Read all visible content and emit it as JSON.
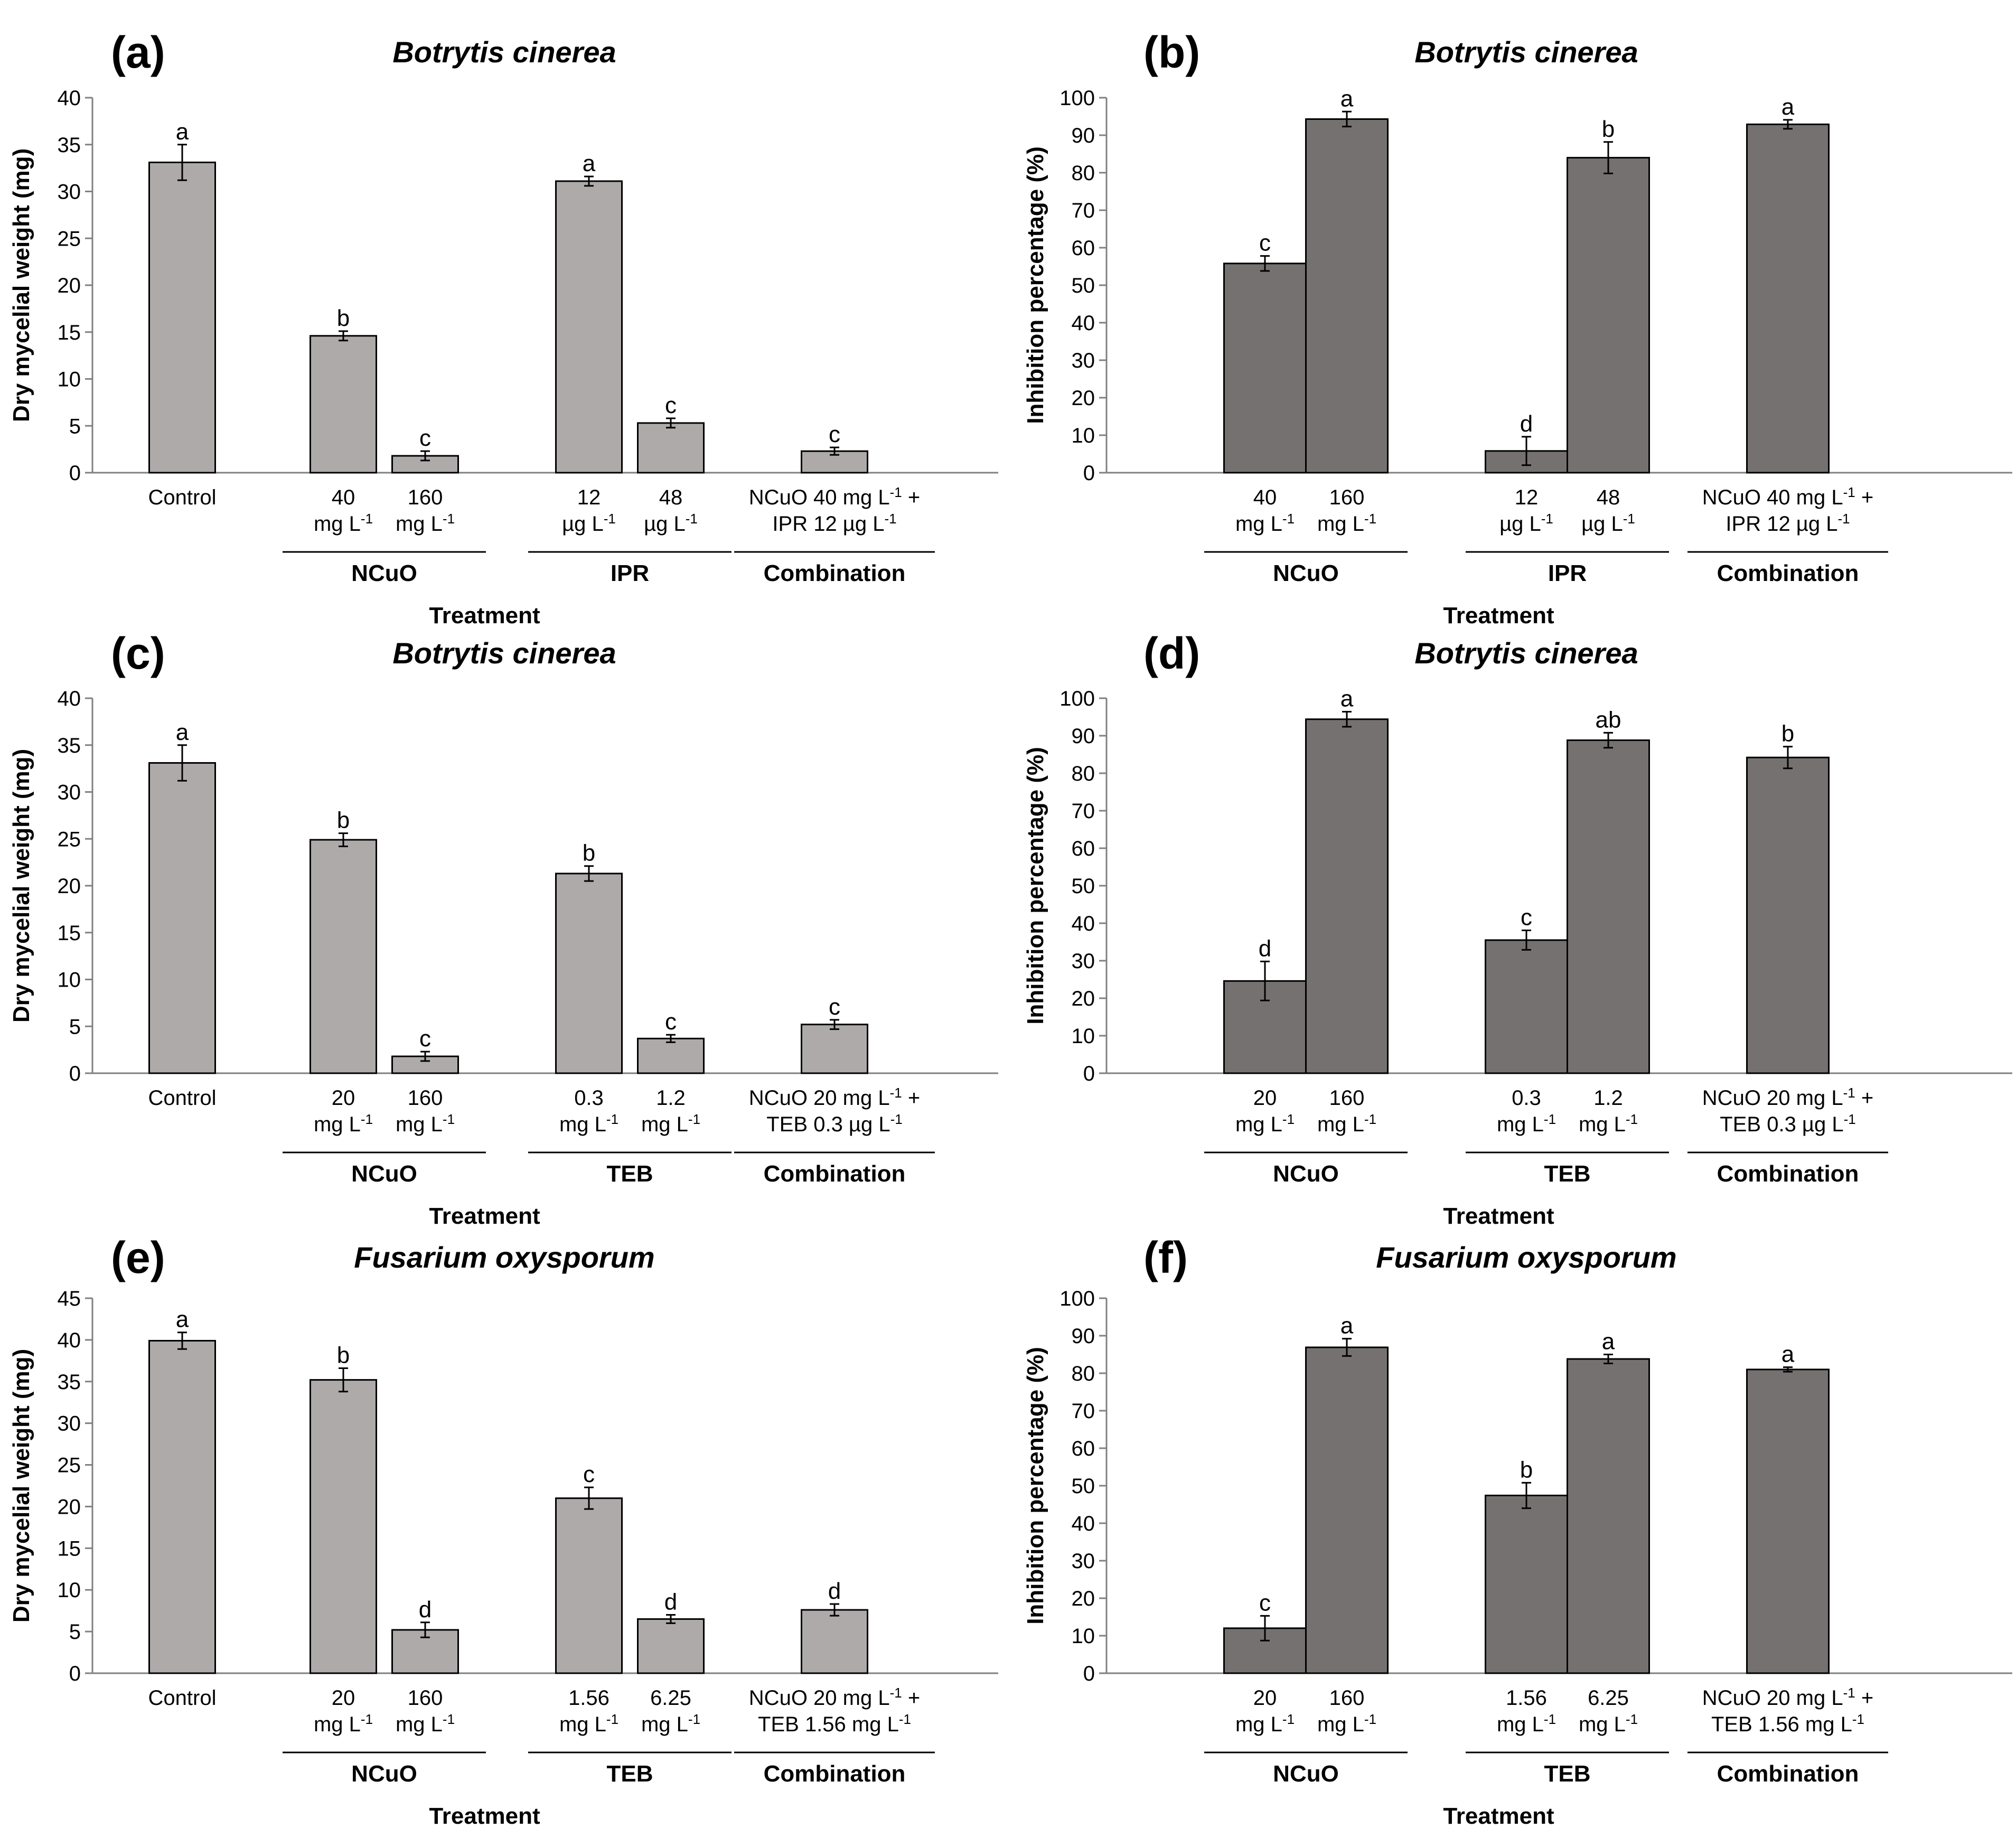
{
  "figure": {
    "title": "Six-panel bar chart figure"
  },
  "colors": {
    "light_bar": "#aeaaaa",
    "dark_bar": "#767171",
    "axis": "#808080",
    "outline": "#000000"
  },
  "superscript": "-1",
  "chart_data": [
    {
      "panel": "(a)",
      "title": "Botrytis cinerea",
      "type": "bar",
      "ylabel": "Dry mycelial weight (mg)",
      "xlabel": "Treatment",
      "ylim": [
        0,
        40
      ],
      "ytick_step": 5,
      "color": "light",
      "categories": [
        {
          "lines": [
            {
              "t": "Control"
            }
          ],
          "value": 33.1,
          "err": 1.9,
          "letter": "a"
        },
        {
          "lines": [
            {
              "t": "40"
            },
            {
              "t": "mg L",
              "sup": true
            }
          ],
          "value": 14.6,
          "err": 0.5,
          "letter": "b"
        },
        {
          "lines": [
            {
              "t": "160"
            },
            {
              "t": "mg L",
              "sup": true
            }
          ],
          "value": 1.8,
          "err": 0.5,
          "letter": "c"
        },
        {
          "lines": [
            {
              "t": "12"
            },
            {
              "t": "µg L",
              "sup": true
            }
          ],
          "value": 31.1,
          "err": 0.5,
          "letter": "a"
        },
        {
          "lines": [
            {
              "t": "48"
            },
            {
              "t": "µg L",
              "sup": true
            }
          ],
          "value": 5.3,
          "err": 0.5,
          "letter": "c"
        },
        {
          "lines": [
            {
              "t": "NCuO 40 mg L",
              "sup": true,
              "after": " +"
            },
            {
              "t": "IPR 12 µg L",
              "sup": true
            }
          ],
          "value": 2.3,
          "err": 0.4,
          "letter": "c"
        }
      ],
      "groups": [
        {
          "label": "NCuO",
          "from": 1,
          "to": 2
        },
        {
          "label": "IPR",
          "from": 3,
          "to": 4
        },
        {
          "label": "Combination",
          "from": 5,
          "to": 5
        }
      ]
    },
    {
      "panel": "(b)",
      "title": "Botrytis cinerea",
      "type": "bar",
      "ylabel": "Inhibition percentage (%)",
      "xlabel": "Treatment",
      "ylim": [
        0,
        100
      ],
      "ytick_step": 10,
      "color": "dark",
      "categories": [
        {
          "lines": [
            {
              "t": "40"
            },
            {
              "t": "mg L",
              "sup": true
            }
          ],
          "value": 55.8,
          "err": 2.0,
          "letter": "c"
        },
        {
          "lines": [
            {
              "t": "160"
            },
            {
              "t": "mg L",
              "sup": true
            }
          ],
          "value": 94.3,
          "err": 2.0,
          "letter": "a"
        },
        {
          "lines": [
            {
              "t": "12"
            },
            {
              "t": "µg L",
              "sup": true
            }
          ],
          "value": 5.8,
          "err": 3.8,
          "letter": "d"
        },
        {
          "lines": [
            {
              "t": "48"
            },
            {
              "t": "µg L",
              "sup": true
            }
          ],
          "value": 84.0,
          "err": 4.2,
          "letter": "b"
        },
        {
          "lines": [
            {
              "t": "NCuO 40 mg L",
              "sup": true,
              "after": " +"
            },
            {
              "t": "IPR 12 µg L",
              "sup": true
            }
          ],
          "value": 92.9,
          "err": 1.2,
          "letter": "a"
        }
      ],
      "groups": [
        {
          "label": "NCuO",
          "from": 0,
          "to": 1
        },
        {
          "label": "IPR",
          "from": 2,
          "to": 3
        },
        {
          "label": "Combination",
          "from": 4,
          "to": 4
        }
      ]
    },
    {
      "panel": "(c)",
      "title": "Botrytis cinerea",
      "type": "bar",
      "ylabel": "Dry mycelial weight (mg)",
      "xlabel": "Treatment",
      "ylim": [
        0,
        40
      ],
      "ytick_step": 5,
      "color": "light",
      "categories": [
        {
          "lines": [
            {
              "t": "Control"
            }
          ],
          "value": 33.1,
          "err": 1.9,
          "letter": "a"
        },
        {
          "lines": [
            {
              "t": "20"
            },
            {
              "t": "mg L",
              "sup": true
            }
          ],
          "value": 24.9,
          "err": 0.7,
          "letter": "b"
        },
        {
          "lines": [
            {
              "t": "160"
            },
            {
              "t": "mg L",
              "sup": true
            }
          ],
          "value": 1.8,
          "err": 0.5,
          "letter": "c"
        },
        {
          "lines": [
            {
              "t": "0.3"
            },
            {
              "t": "mg L",
              "sup": true
            }
          ],
          "value": 21.3,
          "err": 0.8,
          "letter": "b"
        },
        {
          "lines": [
            {
              "t": "1.2"
            },
            {
              "t": "mg L",
              "sup": true
            }
          ],
          "value": 3.7,
          "err": 0.4,
          "letter": "c"
        },
        {
          "lines": [
            {
              "t": "NCuO 20 mg L",
              "sup": true,
              "after": " +"
            },
            {
              "t": "TEB 0.3 µg L",
              "sup": true
            }
          ],
          "value": 5.2,
          "err": 0.5,
          "letter": "c"
        }
      ],
      "groups": [
        {
          "label": "NCuO",
          "from": 1,
          "to": 2
        },
        {
          "label": "TEB",
          "from": 3,
          "to": 4
        },
        {
          "label": "Combination",
          "from": 5,
          "to": 5
        }
      ]
    },
    {
      "panel": "(d)",
      "title": "Botrytis cinerea",
      "type": "bar",
      "ylabel": "Inhibition percentage (%)",
      "xlabel": "Treatment",
      "ylim": [
        0,
        100
      ],
      "ytick_step": 10,
      "color": "dark",
      "categories": [
        {
          "lines": [
            {
              "t": "20"
            },
            {
              "t": "mg L",
              "sup": true
            }
          ],
          "value": 24.6,
          "err": 5.2,
          "letter": "d"
        },
        {
          "lines": [
            {
              "t": "160"
            },
            {
              "t": "mg L",
              "sup": true
            }
          ],
          "value": 94.4,
          "err": 2.0,
          "letter": "a"
        },
        {
          "lines": [
            {
              "t": "0.3"
            },
            {
              "t": "mg L",
              "sup": true
            }
          ],
          "value": 35.5,
          "err": 2.6,
          "letter": "c"
        },
        {
          "lines": [
            {
              "t": "1.2"
            },
            {
              "t": "mg L",
              "sup": true
            }
          ],
          "value": 88.8,
          "err": 2.0,
          "letter": "ab"
        },
        {
          "lines": [
            {
              "t": "NCuO 20 mg L",
              "sup": true,
              "after": " +"
            },
            {
              "t": "TEB 0.3 µg L",
              "sup": true
            }
          ],
          "value": 84.2,
          "err": 2.9,
          "letter": "b"
        }
      ],
      "groups": [
        {
          "label": "NCuO",
          "from": 0,
          "to": 1
        },
        {
          "label": "TEB",
          "from": 2,
          "to": 3
        },
        {
          "label": "Combination",
          "from": 4,
          "to": 4
        }
      ]
    },
    {
      "panel": "(e)",
      "title": "Fusarium oxysporum",
      "type": "bar",
      "ylabel": "Dry mycelial weight (mg)",
      "xlabel": "Treatment",
      "ylim": [
        0,
        45
      ],
      "ytick_step": 5,
      "color": "light",
      "categories": [
        {
          "lines": [
            {
              "t": "Control"
            }
          ],
          "value": 39.9,
          "err": 1.0,
          "letter": "a"
        },
        {
          "lines": [
            {
              "t": "20"
            },
            {
              "t": "mg L",
              "sup": true
            }
          ],
          "value": 35.2,
          "err": 1.4,
          "letter": "b"
        },
        {
          "lines": [
            {
              "t": "160"
            },
            {
              "t": "mg L",
              "sup": true
            }
          ],
          "value": 5.2,
          "err": 0.9,
          "letter": "d"
        },
        {
          "lines": [
            {
              "t": "1.56"
            },
            {
              "t": "mg L",
              "sup": true
            }
          ],
          "value": 21.0,
          "err": 1.3,
          "letter": "c"
        },
        {
          "lines": [
            {
              "t": "6.25"
            },
            {
              "t": "mg L",
              "sup": true
            }
          ],
          "value": 6.5,
          "err": 0.5,
          "letter": "d"
        },
        {
          "lines": [
            {
              "t": "NCuO 20 mg L",
              "sup": true,
              "after": " +"
            },
            {
              "t": "TEB 1.56 mg L",
              "sup": true
            }
          ],
          "value": 7.6,
          "err": 0.7,
          "letter": "d"
        }
      ],
      "groups": [
        {
          "label": "NCuO",
          "from": 1,
          "to": 2
        },
        {
          "label": "TEB",
          "from": 3,
          "to": 4
        },
        {
          "label": "Combination",
          "from": 5,
          "to": 5
        }
      ]
    },
    {
      "panel": "(f)",
      "title": "Fusarium oxysporum",
      "type": "bar",
      "ylabel": "Inhibition percentage (%)",
      "xlabel": "Treatment",
      "ylim": [
        0,
        100
      ],
      "ytick_step": 10,
      "color": "dark",
      "categories": [
        {
          "lines": [
            {
              "t": "20"
            },
            {
              "t": "mg L",
              "sup": true
            }
          ],
          "value": 12.0,
          "err": 3.3,
          "letter": "c"
        },
        {
          "lines": [
            {
              "t": "160"
            },
            {
              "t": "mg L",
              "sup": true
            }
          ],
          "value": 86.9,
          "err": 2.3,
          "letter": "a"
        },
        {
          "lines": [
            {
              "t": "1.56"
            },
            {
              "t": "mg L",
              "sup": true
            }
          ],
          "value": 47.4,
          "err": 3.4,
          "letter": "b"
        },
        {
          "lines": [
            {
              "t": "6.25"
            },
            {
              "t": "mg L",
              "sup": true
            }
          ],
          "value": 83.8,
          "err": 1.2,
          "letter": "a"
        },
        {
          "lines": [
            {
              "t": "NCuO 20 mg L",
              "sup": true,
              "after": " +"
            },
            {
              "t": "TEB 1.56 mg L",
              "sup": true
            }
          ],
          "value": 81.0,
          "err": 0.6,
          "letter": "a"
        }
      ],
      "groups": [
        {
          "label": "NCuO",
          "from": 0,
          "to": 1
        },
        {
          "label": "TEB",
          "from": 2,
          "to": 3
        },
        {
          "label": "Combination",
          "from": 4,
          "to": 4
        }
      ]
    }
  ]
}
